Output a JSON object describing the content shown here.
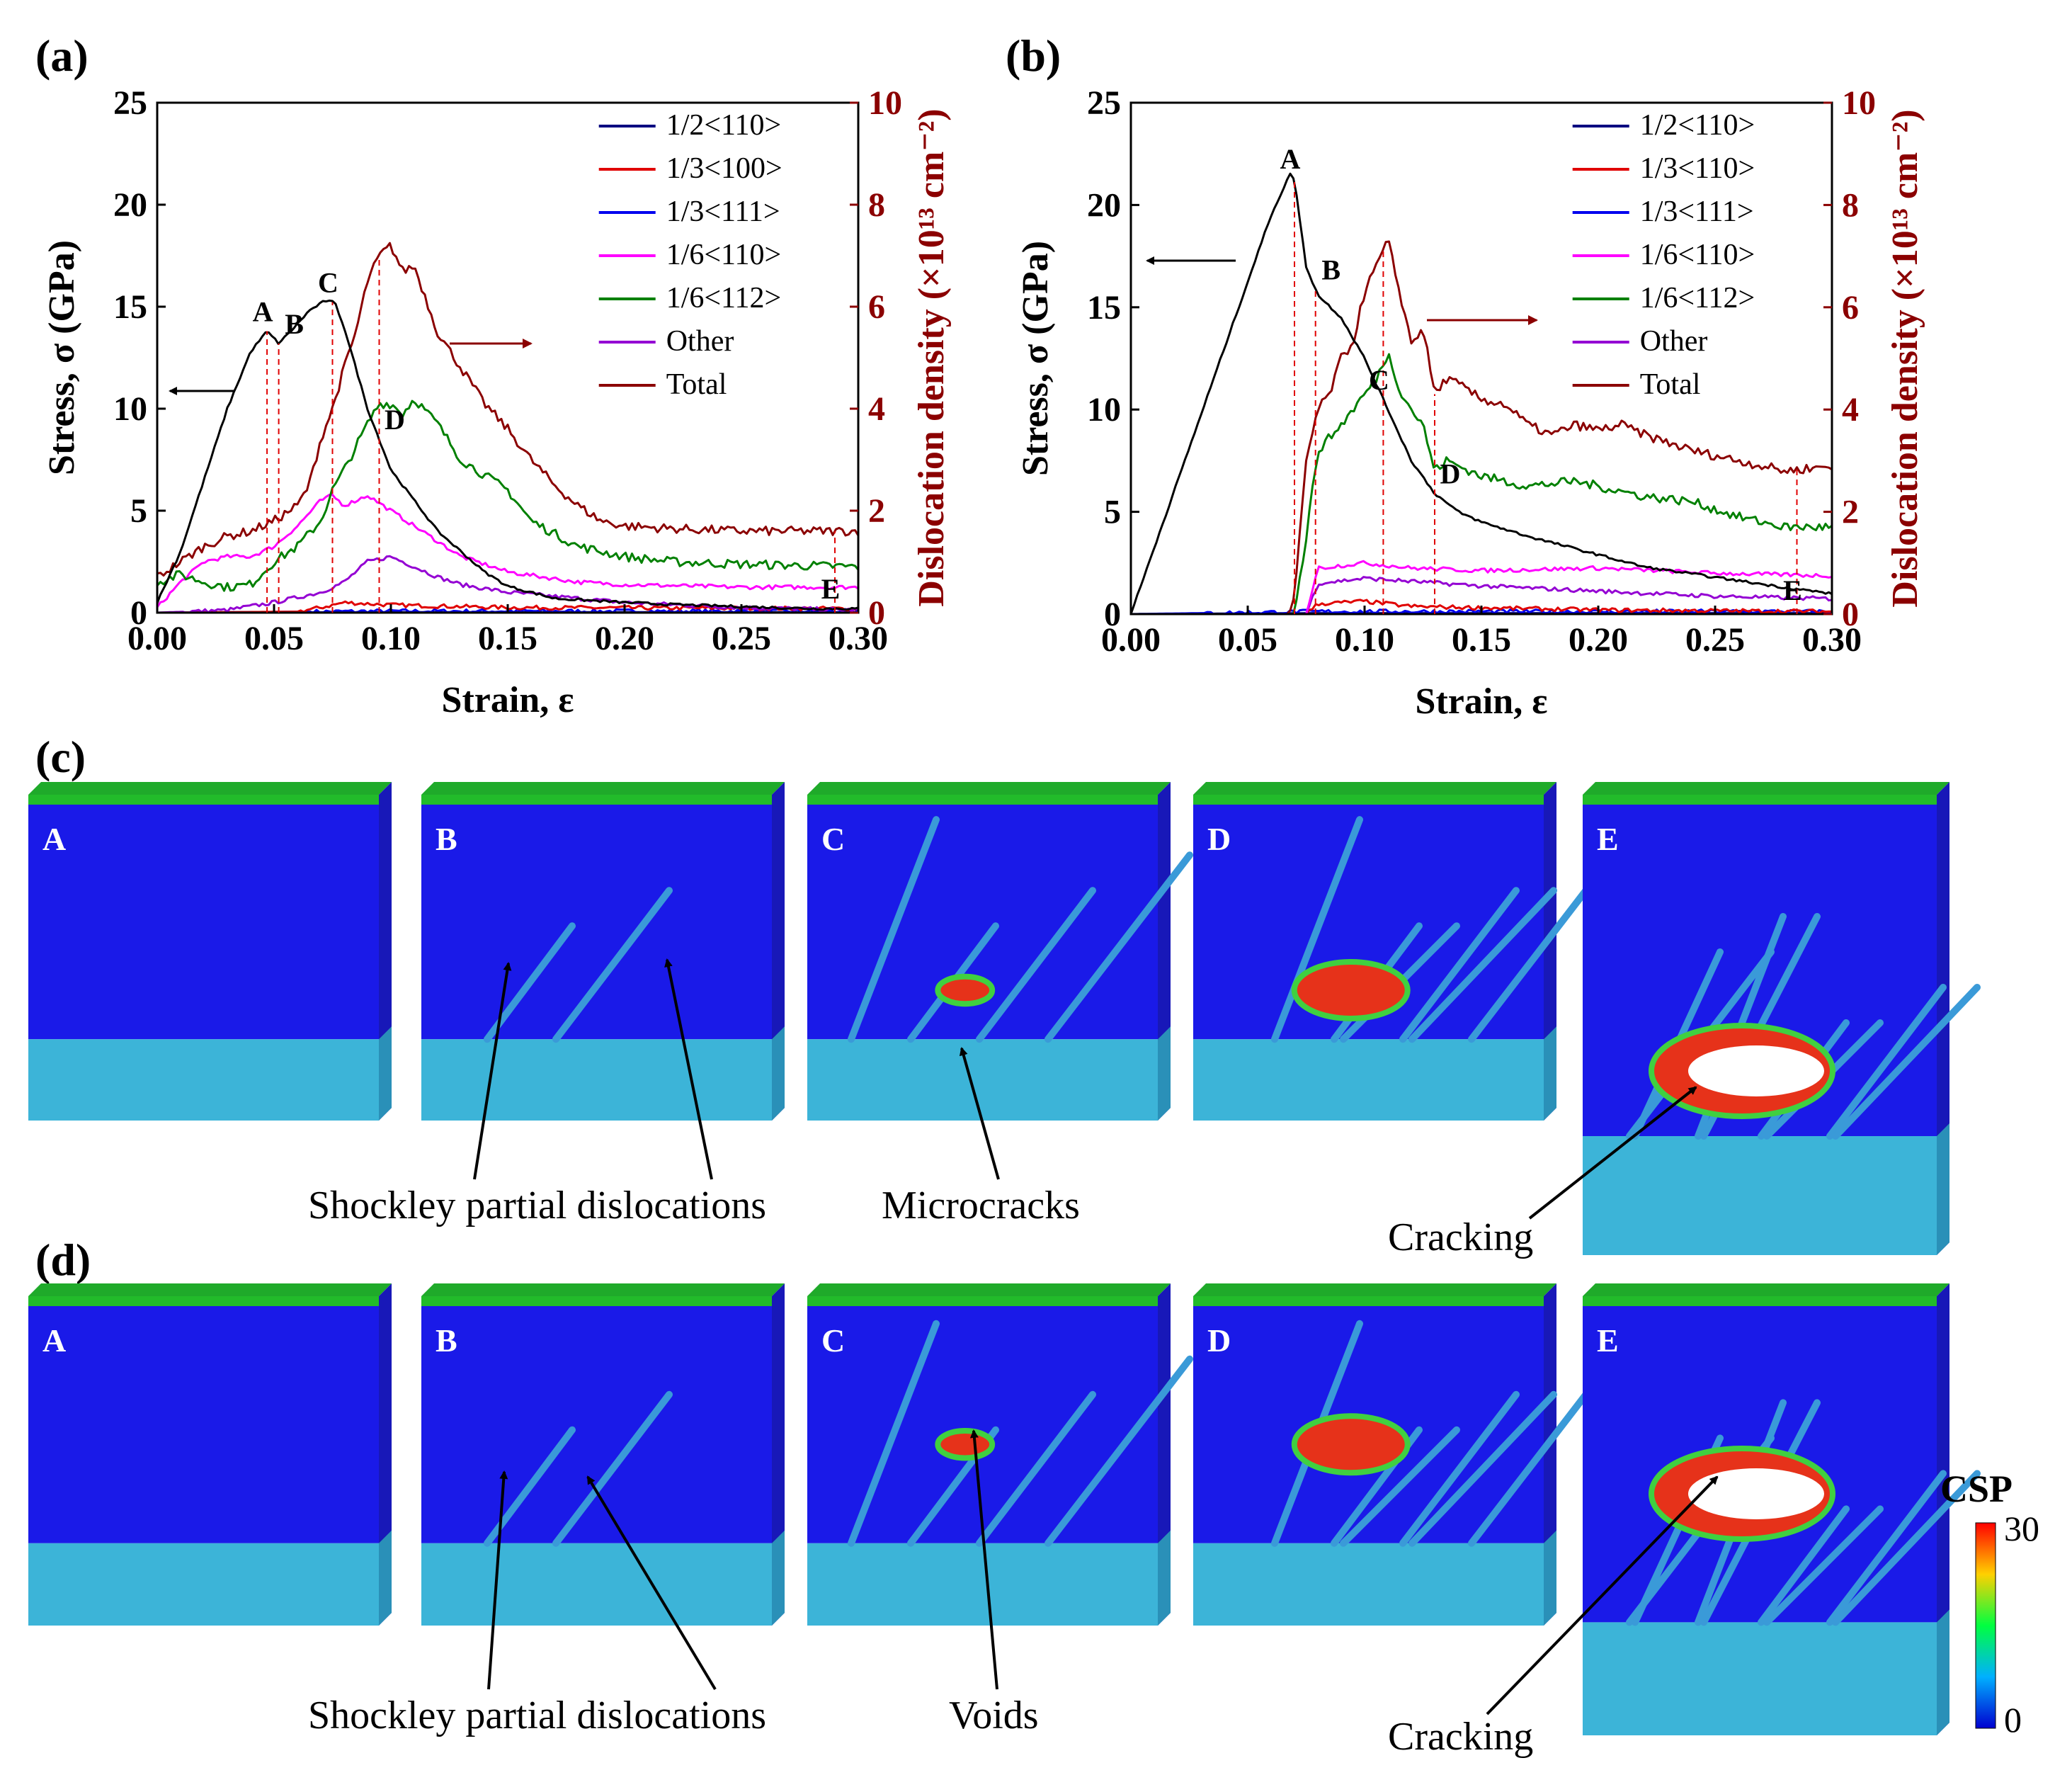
{
  "panels": {
    "a": "(a)",
    "b": "(b)",
    "c": "(c)",
    "d": "(d)"
  },
  "axes": {
    "xlabel": "Strain, ε",
    "ylabel_left": "Stress, σ (GPa)",
    "ylabel_right": "Dislocation density (×10¹³ cm⁻²)"
  },
  "chart_data": [
    {
      "id": "a",
      "type": "line",
      "title": "(a)",
      "xlabel": "Strain, ε",
      "ylabel": "Stress, σ (GPa)",
      "ylabel_right": "Dislocation density (×10¹³ cm⁻²)",
      "xlim": [
        0,
        0.3
      ],
      "ylim": [
        0,
        25
      ],
      "ylim_right": [
        0,
        10
      ],
      "xticks": [
        "0.00",
        "0.05",
        "0.10",
        "0.15",
        "0.20",
        "0.25",
        "0.30"
      ],
      "yticks": [
        "0",
        "5",
        "10",
        "15",
        "20",
        "25"
      ],
      "yticks_right": [
        "0",
        "2",
        "4",
        "6",
        "8",
        "10"
      ],
      "legend": [
        "1/2<110>",
        "1/3<100>",
        "1/3<111>",
        "1/6<110>",
        "1/6<112>",
        "Other",
        "Total"
      ],
      "legend_colors": [
        "#000080",
        "#e00000",
        "#0000ee",
        "#ff00ff",
        "#008000",
        "#9400d3",
        "#8b0000"
      ],
      "stress": {
        "name": "Stress",
        "color": "#000000",
        "x": [
          0,
          0.01,
          0.02,
          0.03,
          0.04,
          0.047,
          0.052,
          0.058,
          0.065,
          0.072,
          0.076,
          0.08,
          0.085,
          0.09,
          0.095,
          0.1,
          0.11,
          0.12,
          0.13,
          0.14,
          0.15,
          0.17,
          0.2,
          0.22,
          0.25,
          0.28,
          0.3
        ],
        "y": [
          0.5,
          3,
          6.5,
          10,
          12.8,
          13.8,
          13.2,
          13.9,
          14.8,
          15.3,
          15.2,
          14,
          12,
          10,
          8.5,
          7,
          5.5,
          4,
          3,
          2,
          1.3,
          0.7,
          0.5,
          0.4,
          0.3,
          0.2,
          0.2
        ]
      },
      "series": [
        {
          "name": "Total",
          "color": "#8b0000",
          "x": [
            0,
            0.01,
            0.02,
            0.03,
            0.04,
            0.05,
            0.06,
            0.065,
            0.07,
            0.075,
            0.08,
            0.085,
            0.09,
            0.095,
            0.1,
            0.105,
            0.11,
            0.12,
            0.13,
            0.14,
            0.15,
            0.16,
            0.17,
            0.18,
            0.19,
            0.2,
            0.22,
            0.25,
            0.28,
            0.3
          ],
          "y": [
            0.7,
            1,
            1.3,
            1.5,
            1.6,
            1.8,
            2.1,
            2.5,
            3.4,
            4,
            4.8,
            5.5,
            6.5,
            7,
            7.2,
            6.7,
            6.8,
            5.5,
            4.8,
            4.1,
            3.6,
            3,
            2.5,
            2.1,
            1.8,
            1.7,
            1.65,
            1.6,
            1.6,
            1.6
          ]
        },
        {
          "name": "1/6<112>",
          "color": "#008000",
          "x": [
            0,
            0.01,
            0.02,
            0.03,
            0.04,
            0.05,
            0.06,
            0.07,
            0.075,
            0.08,
            0.09,
            0.095,
            0.1,
            0.105,
            0.11,
            0.12,
            0.13,
            0.14,
            0.15,
            0.16,
            0.18,
            0.2,
            0.22,
            0.25,
            0.3
          ],
          "y": [
            0.6,
            0.75,
            0.6,
            0.5,
            0.55,
            1,
            1.3,
            1.8,
            2.4,
            2.8,
            3.7,
            4.1,
            4.1,
            3.9,
            4.2,
            3.7,
            3,
            2.7,
            2.4,
            1.8,
            1.3,
            1.1,
            1,
            0.95,
            0.9
          ]
        },
        {
          "name": "1/6<110>",
          "color": "#ff00ff",
          "x": [
            0,
            0.01,
            0.02,
            0.03,
            0.04,
            0.05,
            0.06,
            0.07,
            0.075,
            0.08,
            0.09,
            0.1,
            0.11,
            0.12,
            0.13,
            0.15,
            0.18,
            0.2,
            0.25,
            0.3
          ],
          "y": [
            0.1,
            0.6,
            1,
            1.1,
            1.1,
            1.3,
            1.7,
            2.2,
            2.3,
            2.1,
            2.3,
            2,
            1.7,
            1.4,
            1.1,
            0.8,
            0.6,
            0.55,
            0.5,
            0.5
          ]
        },
        {
          "name": "Other",
          "color": "#9400d3",
          "x": [
            0,
            0.03,
            0.05,
            0.07,
            0.08,
            0.09,
            0.1,
            0.11,
            0.12,
            0.13,
            0.15,
            0.2,
            0.25,
            0.3
          ],
          "y": [
            0,
            0.05,
            0.2,
            0.4,
            0.6,
            1,
            1.1,
            0.9,
            0.7,
            0.55,
            0.4,
            0.2,
            0.1,
            0.05
          ]
        },
        {
          "name": "1/3<100>",
          "color": "#e00000",
          "x": [
            0,
            0.06,
            0.07,
            0.08,
            0.1,
            0.15,
            0.3
          ],
          "y": [
            0,
            0.02,
            0.1,
            0.2,
            0.15,
            0.1,
            0.08
          ]
        },
        {
          "name": "1/3<111>",
          "color": "#0000ee",
          "x": [
            0,
            0.1,
            0.3
          ],
          "y": [
            0,
            0.03,
            0.03
          ]
        },
        {
          "name": "1/2<110>",
          "color": "#000080",
          "x": [
            0,
            0.1,
            0.3
          ],
          "y": [
            0,
            0.01,
            0.01
          ]
        }
      ],
      "points": [
        {
          "label": "A",
          "x": 0.047
        },
        {
          "label": "B",
          "x": 0.052
        },
        {
          "label": "C",
          "x": 0.075
        },
        {
          "label": "D",
          "x": 0.095
        },
        {
          "label": "E",
          "x": 0.29
        }
      ]
    },
    {
      "id": "b",
      "type": "line",
      "title": "(b)",
      "xlabel": "Strain, ε",
      "ylabel": "Stress, σ (GPa)",
      "ylabel_right": "Dislocation density (×10¹³ cm⁻²)",
      "xlim": [
        0,
        0.3
      ],
      "ylim": [
        0,
        25
      ],
      "ylim_right": [
        0,
        10
      ],
      "xticks": [
        "0.00",
        "0.05",
        "0.10",
        "0.15",
        "0.20",
        "0.25",
        "0.30"
      ],
      "yticks": [
        "0",
        "5",
        "10",
        "15",
        "20",
        "25"
      ],
      "yticks_right": [
        "0",
        "2",
        "4",
        "6",
        "8",
        "10"
      ],
      "legend": [
        "1/2<110>",
        "1/3<110>",
        "1/3<111>",
        "1/6<110>",
        "1/6<112>",
        "Other",
        "Total"
      ],
      "legend_colors": [
        "#000080",
        "#e00000",
        "#0000ee",
        "#ff00ff",
        "#008000",
        "#9400d3",
        "#8b0000"
      ],
      "stress": {
        "name": "Stress",
        "color": "#000000",
        "x": [
          0,
          0.02,
          0.04,
          0.06,
          0.068,
          0.07,
          0.072,
          0.075,
          0.08,
          0.09,
          0.1,
          0.11,
          0.12,
          0.13,
          0.14,
          0.15,
          0.17,
          0.2,
          0.22,
          0.25,
          0.28,
          0.3
        ],
        "y": [
          0,
          6.5,
          13,
          19.5,
          21.5,
          21.3,
          19.5,
          17,
          15.6,
          14.5,
          12.5,
          10,
          7.5,
          5.9,
          5,
          4.5,
          3.8,
          2.9,
          2.3,
          1.8,
          1.3,
          1
        ]
      },
      "series": [
        {
          "name": "Total",
          "color": "#8b0000",
          "x": [
            0,
            0.068,
            0.07,
            0.075,
            0.08,
            0.085,
            0.09,
            0.095,
            0.1,
            0.105,
            0.11,
            0.115,
            0.12,
            0.125,
            0.13,
            0.135,
            0.14,
            0.15,
            0.16,
            0.17,
            0.18,
            0.19,
            0.2,
            0.21,
            0.22,
            0.24,
            0.26,
            0.28,
            0.3
          ],
          "y": [
            0,
            0,
            0.3,
            3,
            4,
            4.3,
            5,
            5.3,
            6.3,
            6.8,
            7.3,
            6.3,
            5.3,
            5.6,
            4.3,
            4.6,
            4.5,
            4.2,
            4.1,
            3.7,
            3.5,
            3.7,
            3.6,
            3.7,
            3.5,
            3.2,
            3,
            2.8,
            2.9
          ]
        },
        {
          "name": "1/6<112>",
          "color": "#008000",
          "x": [
            0,
            0.07,
            0.075,
            0.08,
            0.09,
            0.1,
            0.105,
            0.11,
            0.115,
            0.12,
            0.125,
            0.13,
            0.135,
            0.14,
            0.15,
            0.17,
            0.19,
            0.2,
            0.22,
            0.24,
            0.26,
            0.28,
            0.3
          ],
          "y": [
            0,
            0,
            1.5,
            3.2,
            3.7,
            4.3,
            4.6,
            5.1,
            4.4,
            4,
            3.7,
            2.8,
            3,
            2.9,
            2.7,
            2.5,
            2.6,
            2.5,
            2.3,
            2.2,
            1.9,
            1.7,
            1.7
          ]
        },
        {
          "name": "1/6<110>",
          "color": "#ff00ff",
          "x": [
            0,
            0.075,
            0.08,
            0.1,
            0.12,
            0.15,
            0.2,
            0.25,
            0.3
          ],
          "y": [
            0,
            0,
            0.9,
            1,
            0.9,
            0.85,
            0.9,
            0.8,
            0.75
          ]
        },
        {
          "name": "Other",
          "color": "#9400d3",
          "x": [
            0,
            0.075,
            0.08,
            0.1,
            0.15,
            0.2,
            0.25,
            0.3
          ],
          "y": [
            0,
            0,
            0.6,
            0.7,
            0.55,
            0.45,
            0.35,
            0.3
          ]
        },
        {
          "name": "1/3<110>",
          "color": "#e00000",
          "x": [
            0,
            0.075,
            0.08,
            0.1,
            0.12,
            0.2,
            0.3
          ],
          "y": [
            0,
            0,
            0.2,
            0.25,
            0.15,
            0.08,
            0.05
          ]
        },
        {
          "name": "1/3<111>",
          "color": "#0000ee",
          "x": [
            0,
            0.08,
            0.3
          ],
          "y": [
            0,
            0.05,
            0.05
          ]
        },
        {
          "name": "1/2<110>",
          "color": "#000080",
          "x": [
            0,
            0.08,
            0.3
          ],
          "y": [
            0,
            0.02,
            0.02
          ]
        }
      ],
      "points": [
        {
          "label": "A",
          "x": 0.07
        },
        {
          "label": "B",
          "x": 0.079
        },
        {
          "label": "C",
          "x": 0.108
        },
        {
          "label": "D",
          "x": 0.13
        },
        {
          "label": "E",
          "x": 0.285
        }
      ]
    }
  ],
  "snapshots": {
    "row_c": [
      "A",
      "B",
      "C",
      "D",
      "E"
    ],
    "row_d": [
      "A",
      "B",
      "C",
      "D",
      "E"
    ]
  },
  "annotations": {
    "c_shockley": "Shockley partial dislocations",
    "c_microcracks": "Microcracks",
    "c_cracking": "Cracking",
    "d_shockley": "Shockley partial dislocations",
    "d_voids": "Voids",
    "d_cracking": "Cracking"
  },
  "colorbar": {
    "title": "CSP",
    "max": "30",
    "min": "0"
  }
}
